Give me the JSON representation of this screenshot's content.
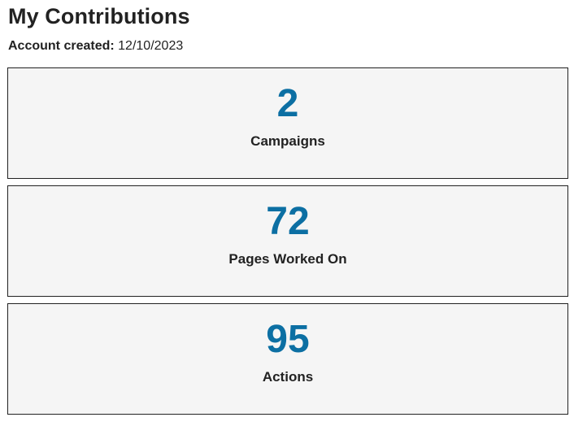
{
  "header": {
    "title": "My Contributions",
    "account_created_label": "Account created:",
    "account_created_value": "12/10/2023"
  },
  "stats": [
    {
      "value": "2",
      "label": "Campaigns"
    },
    {
      "value": "72",
      "label": "Pages Worked On"
    },
    {
      "value": "95",
      "label": "Actions"
    }
  ],
  "colors": {
    "accent": "#0c6fa3",
    "card_background": "#f5f5f5",
    "card_border": "#222222",
    "text": "#222222"
  }
}
